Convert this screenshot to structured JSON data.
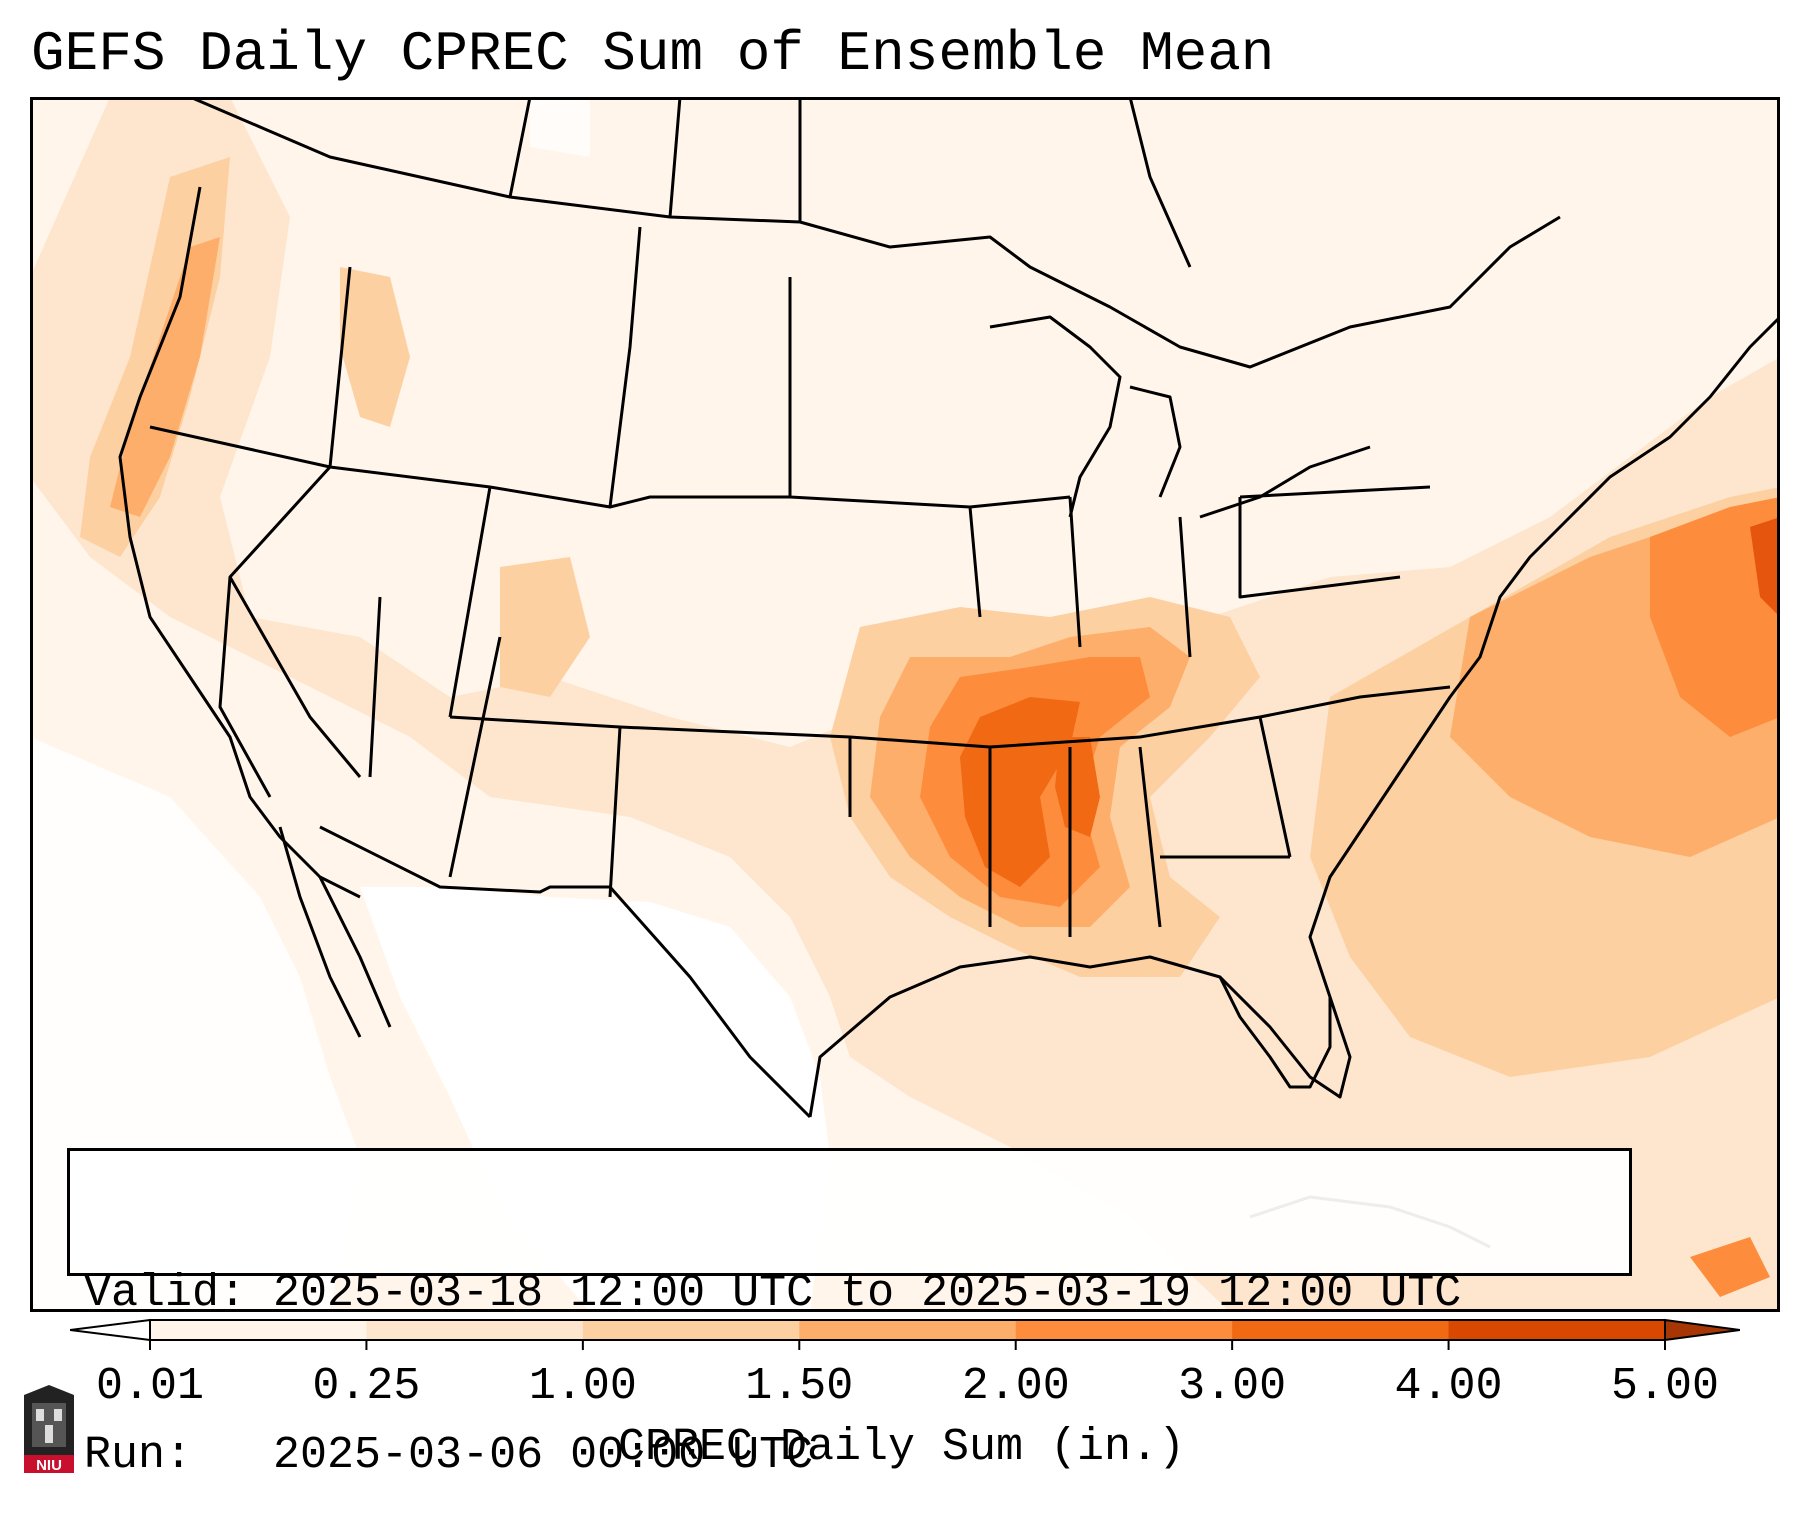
{
  "title": "GEFS Daily CPREC Sum of Ensemble Mean",
  "validity": {
    "valid_line": "Valid: 2025-03-18 12:00 UTC to 2025-03-19 12:00 UTC",
    "run_line": "Run:   2025-03-06 00:00 UTC"
  },
  "colorbar": {
    "label": "CPREC Daily Sum (in.)",
    "ticks": [
      "0.01",
      "0.25",
      "1.00",
      "1.50",
      "2.00",
      "3.00",
      "4.00",
      "5.00"
    ],
    "colors": [
      "#fff5eb",
      "#fee6ce",
      "#fdd0a2",
      "#fdae6b",
      "#fd8d3c",
      "#f16913",
      "#d94801"
    ],
    "under_color": "#ffffff",
    "over_color": "#a63603"
  },
  "map_colors": {
    "land_background": "#fff5eb",
    "light": "#fee6ce",
    "medium": "#fdd0a2",
    "moderate": "#fdae6b",
    "heavy": "#fd8d3c",
    "very_heavy": "#f16913",
    "extreme": "#e6550d",
    "dry": "#ffffff",
    "boundaries": "#000000"
  },
  "logo": {
    "name": "NIU"
  }
}
